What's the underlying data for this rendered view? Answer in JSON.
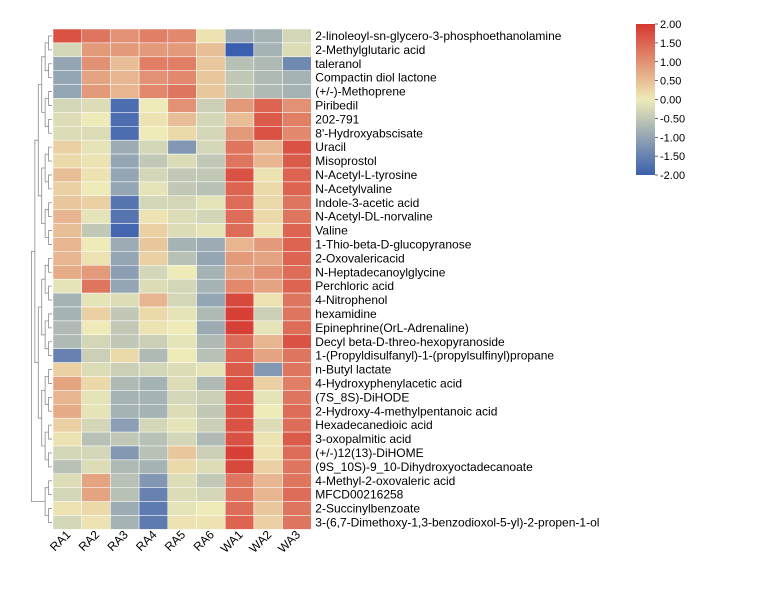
{
  "chart_data": {
    "type": "heatmap",
    "title": "",
    "columns": [
      "RA1",
      "RA2",
      "RA3",
      "RA4",
      "RA5",
      "RA6",
      "WA1",
      "WA2",
      "WA3"
    ],
    "rows": [
      "2-linoleoyl-sn-glycero-3-phosphoethanolamine",
      "2-Methylglutaric acid",
      "taleranol",
      "Compactin diol lactone",
      "(+/-)-Methoprene",
      "Piribedil",
      "202-791",
      "8'-Hydroxyabscisate",
      "Uracil",
      "Misoprostol",
      "N-Acetyl-L-tyrosine",
      "N-Acetylvaline",
      "Indole-3-acetic acid",
      "N-Acetyl-DL-norvaline",
      "Valine",
      "1-Thio-beta-D-glucopyranose",
      "2-Oxovalericacid",
      "N-Heptadecanoylglycine",
      "Perchloric acid",
      "4-Nitrophenol",
      "hexamidine",
      "Epinephrine(OrL-Adrenaline)",
      "Decyl beta-D-threo-hexopyranoside",
      "1-(Propyldisulfanyl)-1-(propylsulfinyl)propane",
      "n-Butyl lactate",
      "4-Hydroxyphenylacetic acid",
      "(7S_8S)-DiHODE",
      "2-Hydroxy-4-methylpentanoic acid",
      "Hexadecanedioic acid",
      "3-oxopalmitic acid",
      "(+/-)12(13)-DiHOME",
      "(9S_10S)-9_10-Dihydroxyoctadecanoate",
      "4-Methyl-2-oxovaleric acid",
      "MFCD00216258",
      "2-Succinylbenzoate",
      "3-(6,7-Dimethoxy-1,3-benzodioxol-5-yl)-2-propen-1-ol"
    ],
    "values": [
      [
        1.7,
        1.3,
        1.0,
        1.2,
        1.1,
        0.1,
        -0.9,
        -0.8,
        -0.3
      ],
      [
        -0.3,
        0.9,
        0.9,
        0.9,
        0.9,
        0.5,
        -2.0,
        -0.8,
        -0.2
      ],
      [
        -1.0,
        1.0,
        0.5,
        1.2,
        1.2,
        0.4,
        -0.6,
        -0.7,
        -1.4
      ],
      [
        -1.0,
        0.8,
        0.6,
        1.0,
        1.1,
        0.4,
        -0.5,
        -0.7,
        -0.8
      ],
      [
        -1.0,
        0.9,
        0.6,
        1.1,
        1.3,
        0.4,
        -0.5,
        -0.7,
        -0.8
      ],
      [
        -0.3,
        -0.2,
        -1.8,
        0.0,
        1.0,
        -0.4,
        0.9,
        1.5,
        1.0
      ],
      [
        -0.2,
        0.0,
        -1.8,
        0.1,
        0.5,
        -0.3,
        0.5,
        1.6,
        1.2
      ],
      [
        -0.2,
        -0.2,
        -1.8,
        0.0,
        0.2,
        -0.3,
        0.9,
        1.7,
        1.1
      ],
      [
        0.3,
        -0.1,
        -0.9,
        -0.3,
        -1.2,
        -0.3,
        1.3,
        0.6,
        1.7
      ],
      [
        0.2,
        0.1,
        -1.0,
        -0.5,
        -0.2,
        -0.5,
        1.3,
        0.6,
        1.6
      ],
      [
        0.5,
        0.1,
        -1.0,
        -0.3,
        -0.5,
        -0.5,
        1.7,
        0.1,
        1.5
      ],
      [
        0.3,
        0.0,
        -1.0,
        -0.1,
        -0.5,
        -0.6,
        1.5,
        0.2,
        1.5
      ],
      [
        0.4,
        0.3,
        -1.7,
        -0.3,
        -0.3,
        -0.1,
        1.4,
        0.2,
        1.3
      ],
      [
        0.6,
        -0.1,
        -1.7,
        0.1,
        -0.2,
        -0.3,
        1.4,
        0.2,
        1.3
      ],
      [
        0.5,
        -0.5,
        -1.9,
        0.3,
        -0.2,
        -0.1,
        1.4,
        0.1,
        1.5
      ],
      [
        0.6,
        0.0,
        -0.9,
        0.4,
        -0.8,
        -0.9,
        0.6,
        0.9,
        1.5
      ],
      [
        0.6,
        0.1,
        -1.0,
        0.3,
        -0.6,
        -1.0,
        0.9,
        0.8,
        1.5
      ],
      [
        0.7,
        0.9,
        -1.1,
        -0.3,
        0.0,
        -0.8,
        0.8,
        1.0,
        1.4
      ],
      [
        -0.1,
        1.3,
        -1.0,
        -0.2,
        -0.3,
        -0.8,
        1.1,
        0.8,
        1.5
      ],
      [
        -0.8,
        -0.1,
        -0.2,
        0.6,
        -0.3,
        -1.0,
        1.8,
        0.1,
        1.3
      ],
      [
        -0.8,
        0.3,
        -0.5,
        0.2,
        -0.1,
        -0.7,
        1.9,
        -0.4,
        1.3
      ],
      [
        -0.7,
        0.0,
        -0.5,
        0.1,
        0.0,
        -0.9,
        1.9,
        -0.1,
        1.4
      ],
      [
        -0.7,
        -0.3,
        -0.5,
        -0.4,
        -0.1,
        -0.7,
        1.4,
        0.6,
        1.7
      ],
      [
        -1.5,
        -0.4,
        0.2,
        -0.7,
        0.0,
        -0.6,
        1.5,
        0.8,
        1.3
      ],
      [
        0.3,
        -0.2,
        -0.4,
        -0.3,
        -0.2,
        -0.1,
        1.6,
        -1.2,
        1.3
      ],
      [
        0.8,
        0.2,
        -0.7,
        -0.8,
        -0.2,
        -0.7,
        1.7,
        0.3,
        1.2
      ],
      [
        0.6,
        -0.1,
        -0.8,
        -0.8,
        -0.3,
        -0.4,
        1.7,
        -0.1,
        1.3
      ],
      [
        0.7,
        -0.1,
        -0.8,
        -0.8,
        -0.2,
        -0.5,
        1.7,
        0.0,
        1.4
      ],
      [
        0.3,
        -0.3,
        -1.1,
        -0.3,
        -0.1,
        -0.4,
        1.7,
        -0.2,
        1.4
      ],
      [
        0.1,
        -0.6,
        -0.5,
        -0.6,
        -0.3,
        -0.7,
        1.7,
        0.1,
        1.6
      ],
      [
        -0.3,
        -0.3,
        -1.2,
        -0.6,
        0.4,
        -0.4,
        1.9,
        0.1,
        1.4
      ],
      [
        -0.6,
        -0.2,
        -0.7,
        -0.8,
        0.2,
        -0.2,
        1.8,
        0.3,
        1.3
      ],
      [
        -0.2,
        0.8,
        -0.6,
        -1.2,
        -0.2,
        -0.5,
        1.3,
        0.6,
        1.3
      ],
      [
        -0.3,
        0.8,
        -0.6,
        -1.5,
        -0.2,
        -0.3,
        1.3,
        0.6,
        1.4
      ],
      [
        0.1,
        0.2,
        -0.9,
        -1.6,
        -0.1,
        0.0,
        1.4,
        0.4,
        1.3
      ],
      [
        -0.3,
        0.1,
        -0.8,
        -1.6,
        0.1,
        0.1,
        1.5,
        0.3,
        1.3
      ]
    ],
    "colorbar": {
      "ticks": [
        "2.00",
        "1.50",
        "1.00",
        "0.50",
        "0.00",
        "-0.50",
        "-1.00",
        "-1.50",
        "-2.00"
      ],
      "range": [
        -2,
        2
      ],
      "colors": [
        "#3a5fae",
        "#eeebb8",
        "#d6372f"
      ]
    },
    "row_dendrogram": true,
    "legend_position": "top-right"
  }
}
